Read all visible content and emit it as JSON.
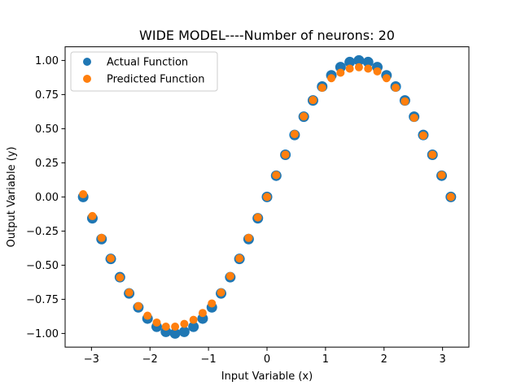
{
  "chart_data": {
    "type": "scatter",
    "title": "WIDE MODEL----Number of neurons: 20",
    "xlabel": "Input Variable (x)",
    "ylabel": "Output Variable (y)",
    "xlim": [
      -3.45,
      3.45
    ],
    "ylim": [
      -1.1,
      1.1
    ],
    "xticks": [
      -3,
      -2,
      -1,
      0,
      1,
      2,
      3
    ],
    "xtick_labels": [
      "−3",
      "−2",
      "−1",
      "0",
      "1",
      "2",
      "3"
    ],
    "yticks": [
      -1.0,
      -0.75,
      -0.5,
      -0.25,
      0.0,
      0.25,
      0.5,
      0.75,
      1.0
    ],
    "ytick_labels": [
      "−1.00",
      "−0.75",
      "−0.50",
      "−0.25",
      "0.00",
      "0.25",
      "0.50",
      "0.75",
      "1.00"
    ],
    "grid": false,
    "legend_position": "top-left",
    "series": [
      {
        "name": "Actual Function",
        "color": "#1f77b4",
        "x": [
          -3.1416,
          -2.9845,
          -2.8274,
          -2.6704,
          -2.5133,
          -2.3562,
          -2.1991,
          -2.042,
          -1.885,
          -1.7279,
          -1.5708,
          -1.4137,
          -1.2566,
          -1.0996,
          -0.9425,
          -0.7854,
          -0.6283,
          -0.4712,
          -0.3142,
          -0.1571,
          0.0,
          0.1571,
          0.3142,
          0.4712,
          0.6283,
          0.7854,
          0.9425,
          1.0996,
          1.2566,
          1.4137,
          1.5708,
          1.7279,
          1.885,
          2.042,
          2.1991,
          2.3562,
          2.5133,
          2.6704,
          2.8274,
          2.9845,
          3.1416
        ],
        "values": [
          0.0,
          -0.156,
          -0.309,
          -0.454,
          -0.588,
          -0.707,
          -0.809,
          -0.891,
          -0.951,
          -0.988,
          -1.0,
          -0.988,
          -0.951,
          -0.891,
          -0.809,
          -0.707,
          -0.588,
          -0.454,
          -0.309,
          -0.156,
          0.0,
          0.156,
          0.309,
          0.454,
          0.588,
          0.707,
          0.809,
          0.891,
          0.951,
          0.988,
          1.0,
          0.988,
          0.951,
          0.891,
          0.809,
          0.707,
          0.588,
          0.454,
          0.309,
          0.156,
          0.0
        ]
      },
      {
        "name": "Predicted Function",
        "color": "#ff7f0e",
        "x": [
          -3.1416,
          -2.9845,
          -2.8274,
          -2.6704,
          -2.5133,
          -2.3562,
          -2.1991,
          -2.042,
          -1.885,
          -1.7279,
          -1.5708,
          -1.4137,
          -1.2566,
          -1.0996,
          -0.9425,
          -0.7854,
          -0.6283,
          -0.4712,
          -0.3142,
          -0.1571,
          0.0,
          0.1571,
          0.3142,
          0.4712,
          0.6283,
          0.7854,
          0.9425,
          1.0996,
          1.2566,
          1.4137,
          1.5708,
          1.7279,
          1.885,
          2.042,
          2.1991,
          2.3562,
          2.5133,
          2.6704,
          2.8274,
          2.9845,
          3.1416
        ],
        "values": [
          0.02,
          -0.14,
          -0.3,
          -0.45,
          -0.59,
          -0.7,
          -0.8,
          -0.87,
          -0.92,
          -0.95,
          -0.95,
          -0.93,
          -0.9,
          -0.85,
          -0.78,
          -0.7,
          -0.58,
          -0.45,
          -0.3,
          -0.15,
          0.0,
          0.16,
          0.31,
          0.46,
          0.59,
          0.71,
          0.8,
          0.87,
          0.91,
          0.94,
          0.95,
          0.94,
          0.92,
          0.87,
          0.8,
          0.7,
          0.58,
          0.45,
          0.31,
          0.16,
          0.0
        ]
      }
    ]
  }
}
